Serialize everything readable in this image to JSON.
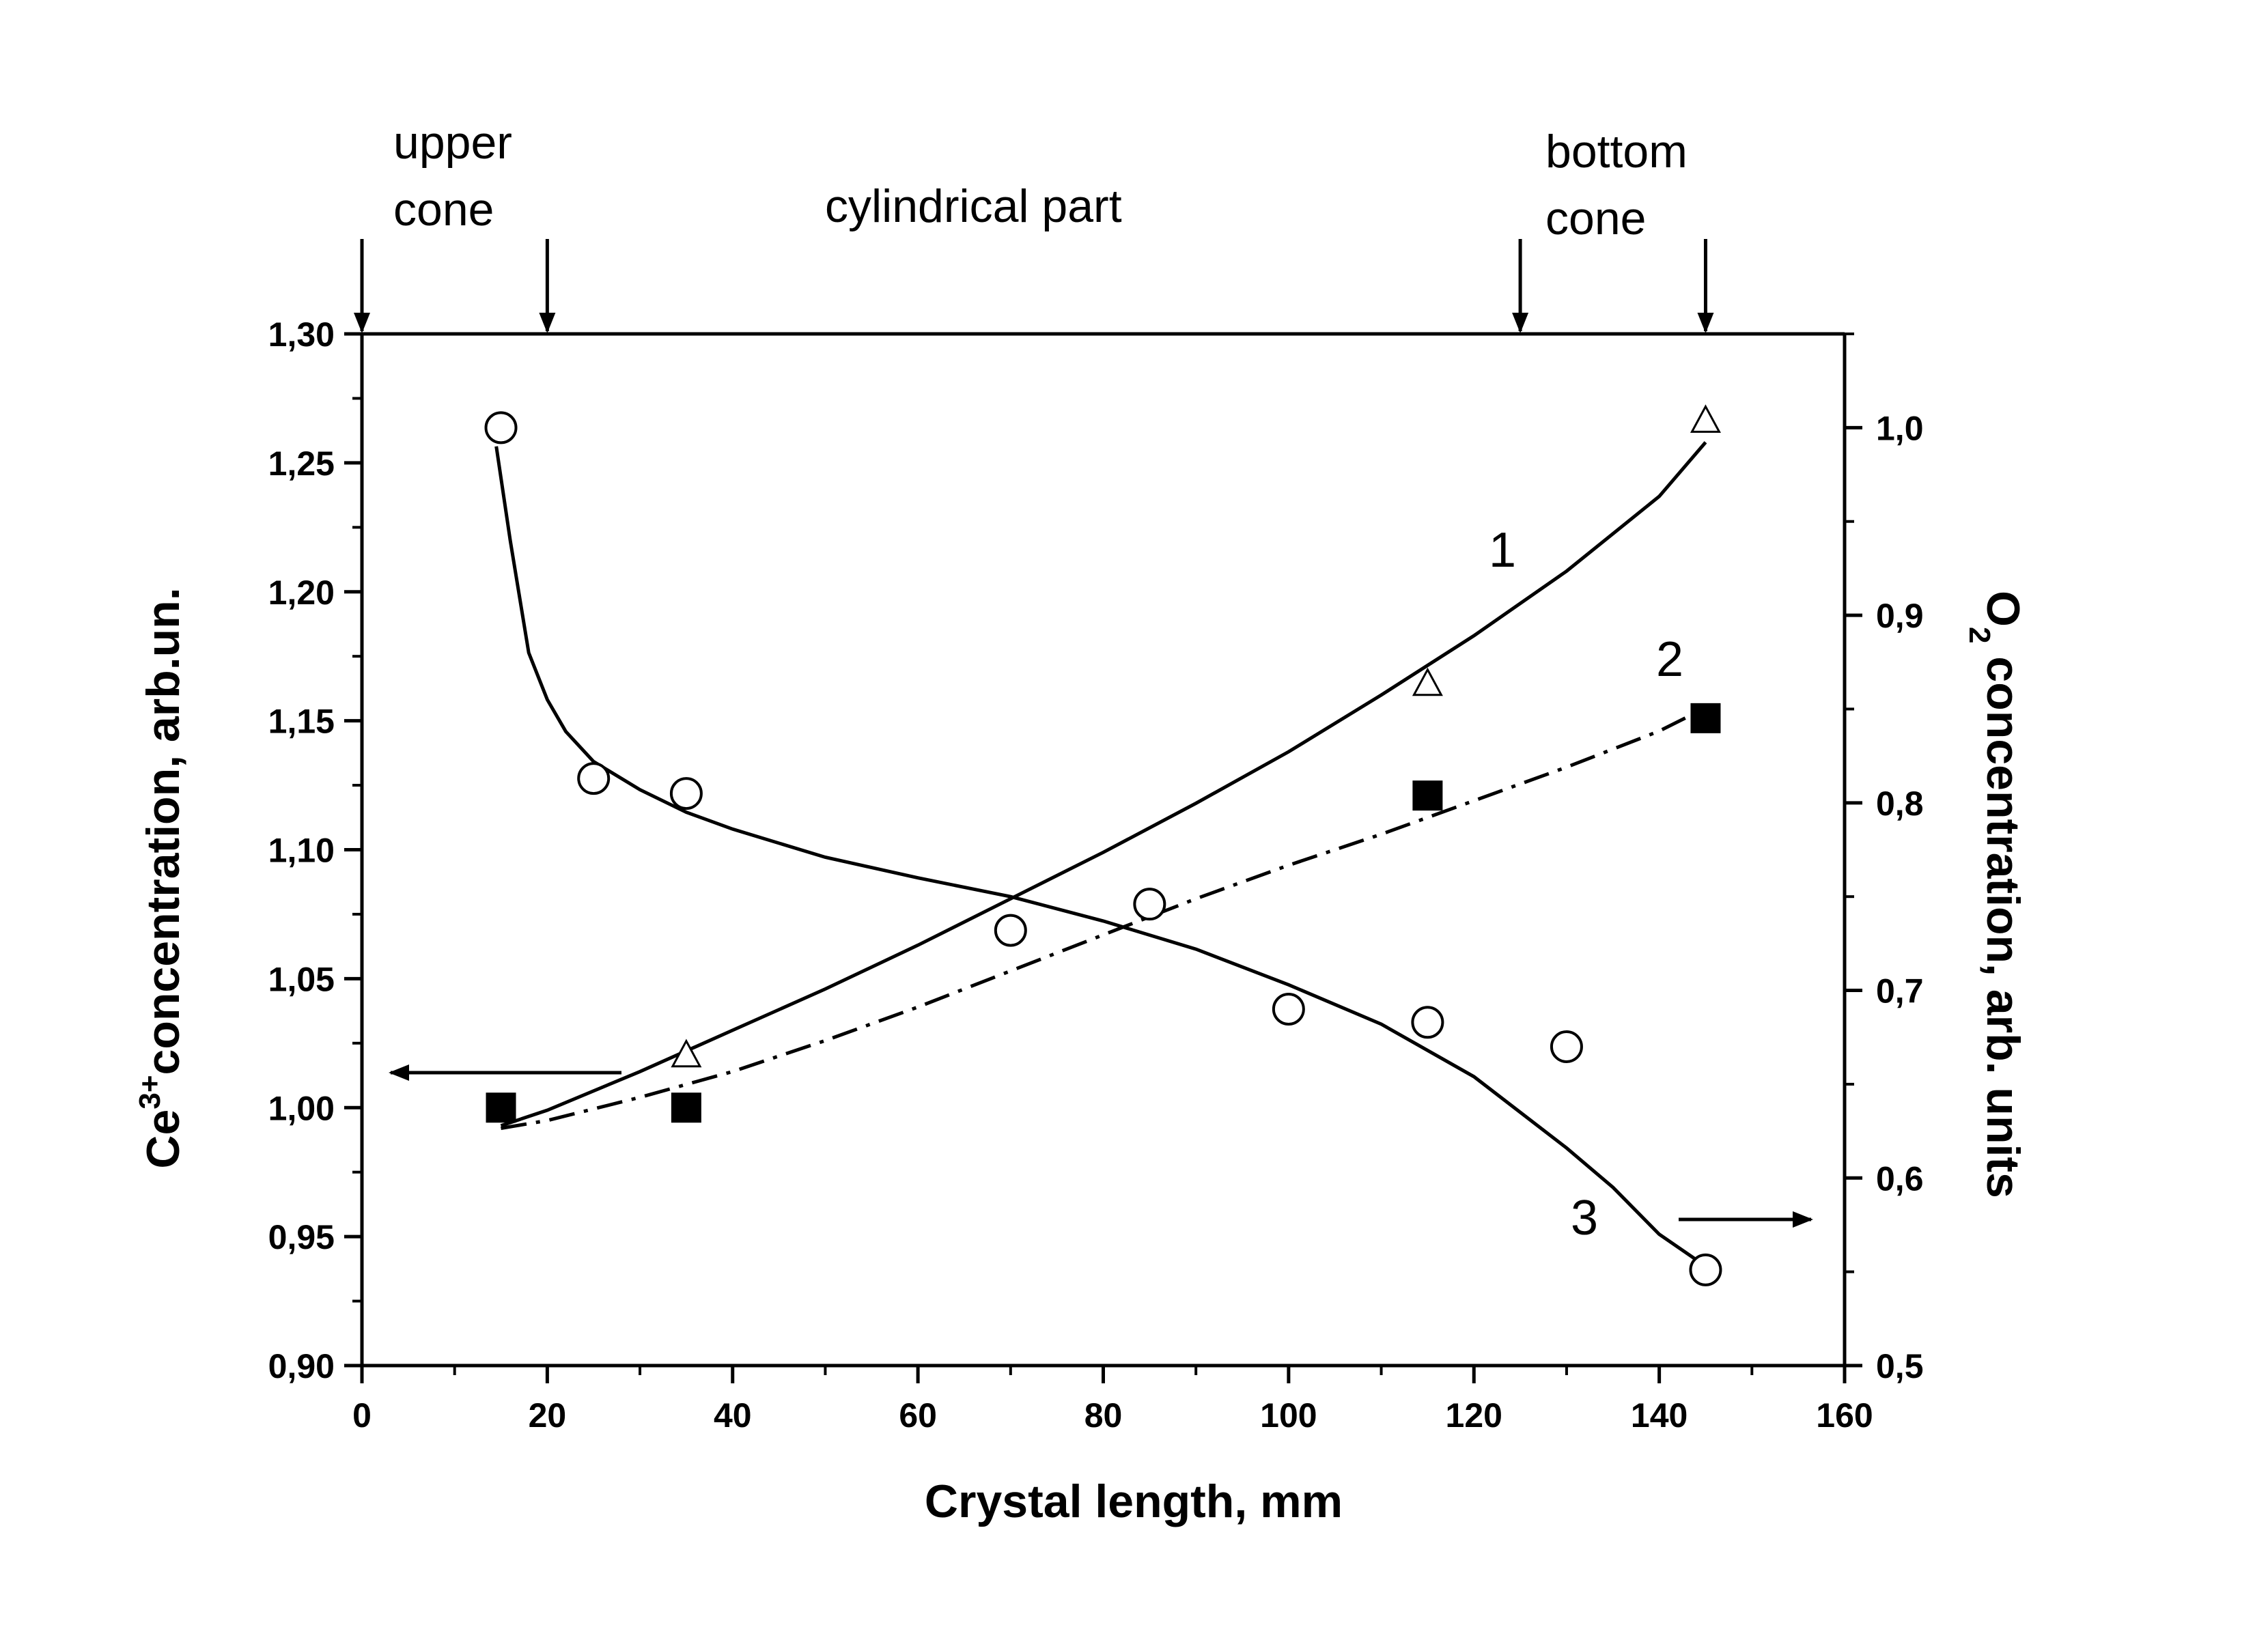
{
  "chart_data": {
    "type": "scatter",
    "xlabel": "Crystal length, mm",
    "ylabel_left": {
      "main": "concentration, arb.un.",
      "prefix": "Ce",
      "sup": "3+"
    },
    "ylabel_right": {
      "prefix": "O",
      "sub": "2",
      "main": " concentration, arb. units"
    },
    "xlim": [
      0,
      160
    ],
    "ylim_left": [
      0.9,
      1.3
    ],
    "ylim_right": [
      0.5,
      1.05
    ],
    "x_ticks": [
      "0",
      "20",
      "40",
      "60",
      "80",
      "100",
      "120",
      "140",
      "160"
    ],
    "y_left_ticks": [
      "0,90",
      "0,95",
      "1,00",
      "1,05",
      "1,10",
      "1,15",
      "1,20",
      "1,25",
      "1,30"
    ],
    "y_right_ticks": [
      "0,5",
      "0,6",
      "0,7",
      "0,8",
      "0,9",
      "1,0"
    ],
    "regions": [
      {
        "label_lines": [
          "upper",
          "cone"
        ]
      },
      {
        "label_lines": [
          "cylindrical part"
        ]
      },
      {
        "label_lines": [
          "bottom",
          "cone"
        ]
      }
    ],
    "region_boundaries_x": [
      0,
      20,
      125,
      145
    ],
    "series": [
      {
        "name": "1",
        "axis": "left",
        "marker": "open-triangle",
        "line": "solid",
        "x": [
          35,
          115,
          145
        ],
        "y": [
          1.02,
          1.164,
          1.266
        ],
        "fit_x": [
          15,
          20,
          30,
          40,
          50,
          60,
          70,
          80,
          90,
          100,
          110,
          120,
          130,
          140,
          145
        ],
        "fit_y": [
          0.993,
          0.999,
          1.014,
          1.03,
          1.046,
          1.063,
          1.081,
          1.099,
          1.118,
          1.138,
          1.16,
          1.183,
          1.208,
          1.237,
          1.258
        ]
      },
      {
        "name": "2",
        "axis": "left",
        "marker": "filled-square",
        "line": "dash-dot",
        "x": [
          15,
          35,
          115,
          145
        ],
        "y": [
          1.0,
          1.0,
          1.121,
          1.151
        ],
        "fit_x": [
          15,
          20,
          30,
          40,
          50,
          60,
          70,
          80,
          90,
          100,
          110,
          120,
          130,
          140,
          145
        ],
        "fit_y": [
          0.992,
          0.995,
          1.004,
          1.014,
          1.026,
          1.039,
          1.053,
          1.067,
          1.081,
          1.094,
          1.106,
          1.119,
          1.132,
          1.146,
          1.155
        ]
      },
      {
        "name": "3",
        "axis": "right",
        "marker": "open-circle",
        "line": "solid",
        "x": [
          15,
          25,
          35,
          70,
          85,
          100,
          115,
          130,
          145
        ],
        "y": [
          1.0,
          0.813,
          0.805,
          0.732,
          0.746,
          0.69,
          0.683,
          0.67,
          0.551
        ],
        "fit_x": [
          14.5,
          16,
          18,
          20,
          22,
          25,
          30,
          35,
          40,
          50,
          60,
          70,
          80,
          90,
          100,
          110,
          120,
          130,
          135,
          140,
          145
        ],
        "fit_y": [
          0.99,
          0.94,
          0.88,
          0.855,
          0.838,
          0.822,
          0.807,
          0.795,
          0.786,
          0.771,
          0.76,
          0.75,
          0.737,
          0.722,
          0.703,
          0.682,
          0.654,
          0.616,
          0.595,
          0.57,
          0.553
        ]
      }
    ],
    "legend": "none"
  }
}
